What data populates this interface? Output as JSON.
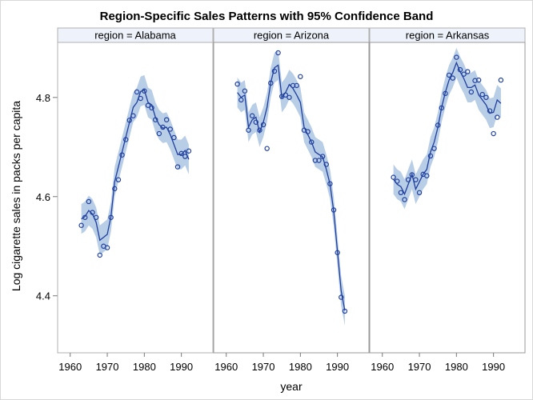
{
  "chart_data": {
    "type": "line",
    "title": "Region-Specific Sales Patterns with 95% Confidence Band",
    "xlabel": "year",
    "ylabel": "Log cigarette sales in packs per capita",
    "xlim": [
      1956.6,
      1998.5
    ],
    "ylim": [
      4.285,
      4.911
    ],
    "x_ticks": [
      1960,
      1970,
      1980,
      1990
    ],
    "x_tick_labels": [
      "1960",
      "1970",
      "1980",
      "1990"
    ],
    "y_ticks": [
      4.4,
      4.6,
      4.8
    ],
    "y_tick_labels": [
      "4.4",
      "4.6",
      "4.8"
    ],
    "band_halfwidth": 0.03,
    "colors": {
      "line": "#1f3f9f",
      "band": "#b8cde6",
      "marker": "#1f3f9f",
      "header": "#eef2fa"
    },
    "x": [
      1963,
      1964,
      1965,
      1966,
      1967,
      1968,
      1969,
      1970,
      1971,
      1972,
      1973,
      1974,
      1975,
      1976,
      1977,
      1978,
      1979,
      1980,
      1981,
      1982,
      1983,
      1984,
      1985,
      1986,
      1987,
      1988,
      1989,
      1990,
      1991,
      1992
    ],
    "panels": [
      {
        "label": "region = Alabama",
        "observed": [
          4.542,
          4.558,
          4.59,
          4.568,
          4.558,
          4.482,
          4.5,
          4.497,
          4.558,
          4.616,
          4.634,
          4.684,
          4.715,
          4.754,
          4.763,
          4.811,
          4.798,
          4.813,
          4.784,
          4.779,
          4.755,
          4.727,
          4.74,
          4.755,
          4.736,
          4.719,
          4.66,
          4.687,
          4.681,
          4.692
        ],
        "fit": [
          4.555,
          4.56,
          4.572,
          4.565,
          4.548,
          4.512,
          4.518,
          4.524,
          4.56,
          4.63,
          4.66,
          4.69,
          4.72,
          4.75,
          4.78,
          4.79,
          4.812,
          4.815,
          4.79,
          4.785,
          4.76,
          4.745,
          4.738,
          4.74,
          4.725,
          4.705,
          4.685,
          4.685,
          4.693,
          4.675
        ]
      },
      {
        "label": "region = Arizona",
        "observed": [
          4.827,
          4.795,
          4.813,
          4.734,
          4.763,
          4.75,
          4.734,
          4.745,
          4.697,
          4.829,
          4.853,
          4.89,
          4.802,
          4.805,
          4.8,
          4.824,
          4.824,
          4.842,
          4.734,
          4.731,
          4.71,
          4.673,
          4.673,
          4.681,
          4.665,
          4.626,
          4.573,
          4.487,
          4.397,
          4.369
        ],
        "fit": [
          4.81,
          4.8,
          4.805,
          4.74,
          4.755,
          4.76,
          4.73,
          4.75,
          4.78,
          4.83,
          4.86,
          4.865,
          4.8,
          4.81,
          4.826,
          4.818,
          4.805,
          4.79,
          4.74,
          4.725,
          4.71,
          4.69,
          4.685,
          4.68,
          4.655,
          4.625,
          4.57,
          4.49,
          4.41,
          4.37
        ]
      },
      {
        "label": "region = Arkansas",
        "observed": [
          4.639,
          4.631,
          4.608,
          4.594,
          4.634,
          4.644,
          4.634,
          4.608,
          4.645,
          4.642,
          4.682,
          4.697,
          4.744,
          4.779,
          4.808,
          4.845,
          4.839,
          4.881,
          4.856,
          4.847,
          4.852,
          4.811,
          4.834,
          4.835,
          4.806,
          4.8,
          4.773,
          4.727,
          4.76,
          4.835
        ],
        "fit": [
          4.635,
          4.625,
          4.62,
          4.605,
          4.625,
          4.645,
          4.615,
          4.63,
          4.645,
          4.655,
          4.69,
          4.71,
          4.74,
          4.78,
          4.81,
          4.835,
          4.85,
          4.87,
          4.852,
          4.838,
          4.82,
          4.82,
          4.825,
          4.805,
          4.795,
          4.785,
          4.768,
          4.77,
          4.795,
          4.788
        ]
      }
    ]
  }
}
